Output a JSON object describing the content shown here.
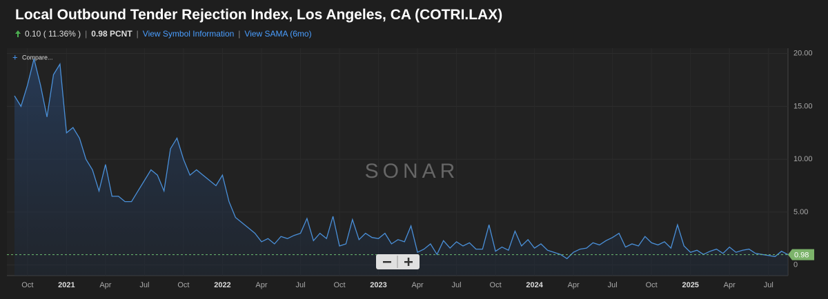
{
  "header": {
    "change": "0.10 ( 11.36% )",
    "last": "0.98 PCNT",
    "links": [
      "View Symbol Information",
      "View SAMA (6mo)"
    ],
    "compare": "Compare...",
    "watermark": "SONAR"
  },
  "chart_data": {
    "type": "line",
    "title": "Local Outbound Tender Rejection Index, Los Angeles, CA (COTRI.LAX)",
    "categories": [
      null,
      null,
      "Oct",
      null,
      null,
      null,
      null,
      null,
      "2021",
      null,
      null,
      null,
      null,
      null,
      "Apr",
      null,
      null,
      null,
      null,
      null,
      "Jul",
      null,
      null,
      null,
      null,
      null,
      "Oct",
      null,
      null,
      null,
      null,
      null,
      "2022",
      null,
      null,
      null,
      null,
      null,
      "Apr",
      null,
      null,
      null,
      null,
      null,
      "Jul",
      null,
      null,
      null,
      null,
      null,
      "Oct",
      null,
      null,
      null,
      null,
      null,
      "2023",
      null,
      null,
      null,
      null,
      null,
      "Apr",
      null,
      null,
      null,
      null,
      null,
      "Jul",
      null,
      null,
      null,
      null,
      null,
      "Oct",
      null,
      null,
      null,
      null,
      null,
      "2024",
      null,
      null,
      null,
      null,
      null,
      "Apr",
      null,
      null,
      null,
      null,
      null,
      "Jul",
      null,
      null,
      null,
      null,
      null,
      "Oct",
      null,
      null,
      null,
      null,
      null,
      "2025",
      null,
      null,
      null,
      null,
      null,
      "Apr",
      null,
      null,
      null,
      null,
      null,
      "Jul",
      null,
      null,
      null
    ],
    "series": [
      {
        "color": "#4a90d9",
        "values": [
          16,
          15,
          17,
          19.5,
          17,
          14,
          18,
          19,
          12.5,
          13,
          12,
          10,
          9,
          7,
          9.5,
          6.5,
          6.5,
          6,
          6,
          7,
          8,
          9,
          8.5,
          7,
          11,
          12,
          10,
          8.5,
          9,
          8.5,
          8,
          7.5,
          8.5,
          6,
          4.5,
          4,
          3.5,
          3,
          2.2,
          2.5,
          2,
          2.7,
          2.5,
          2.8,
          3,
          4.4,
          2.3,
          3,
          2.5,
          4.6,
          1.8,
          2,
          4.3,
          2.4,
          3,
          2.6,
          2.5,
          3,
          2,
          2.4,
          2.2,
          3.7,
          1.2,
          1.5,
          2,
          1,
          2.3,
          1.6,
          2.2,
          1.8,
          2.1,
          1.5,
          1.5,
          3.8,
          1.3,
          1.7,
          1.4,
          3.2,
          1.8,
          2.4,
          1.6,
          2,
          1.4,
          1.2,
          1,
          0.6,
          1.2,
          1.5,
          1.6,
          2.1,
          1.9,
          2.3,
          2.6,
          3,
          1.7,
          2,
          1.8,
          2.7,
          2.1,
          1.9,
          2.2,
          1.6,
          3.8,
          1.8,
          1.2,
          1.4,
          1,
          1.3,
          1.5,
          1.1,
          1.7,
          1.2,
          1.4,
          1.5,
          1.1,
          1,
          0.9,
          0.8,
          1.3,
          0.98
        ]
      }
    ],
    "ylim": [
      -1,
      20.5
    ],
    "yticks": [
      0,
      {
        "value": 5,
        "label": "5.00"
      },
      {
        "value": 10,
        "label": "10.00"
      },
      {
        "value": 15,
        "label": "15.00"
      },
      {
        "value": 20,
        "label": "20.00"
      }
    ],
    "grid": true
  }
}
